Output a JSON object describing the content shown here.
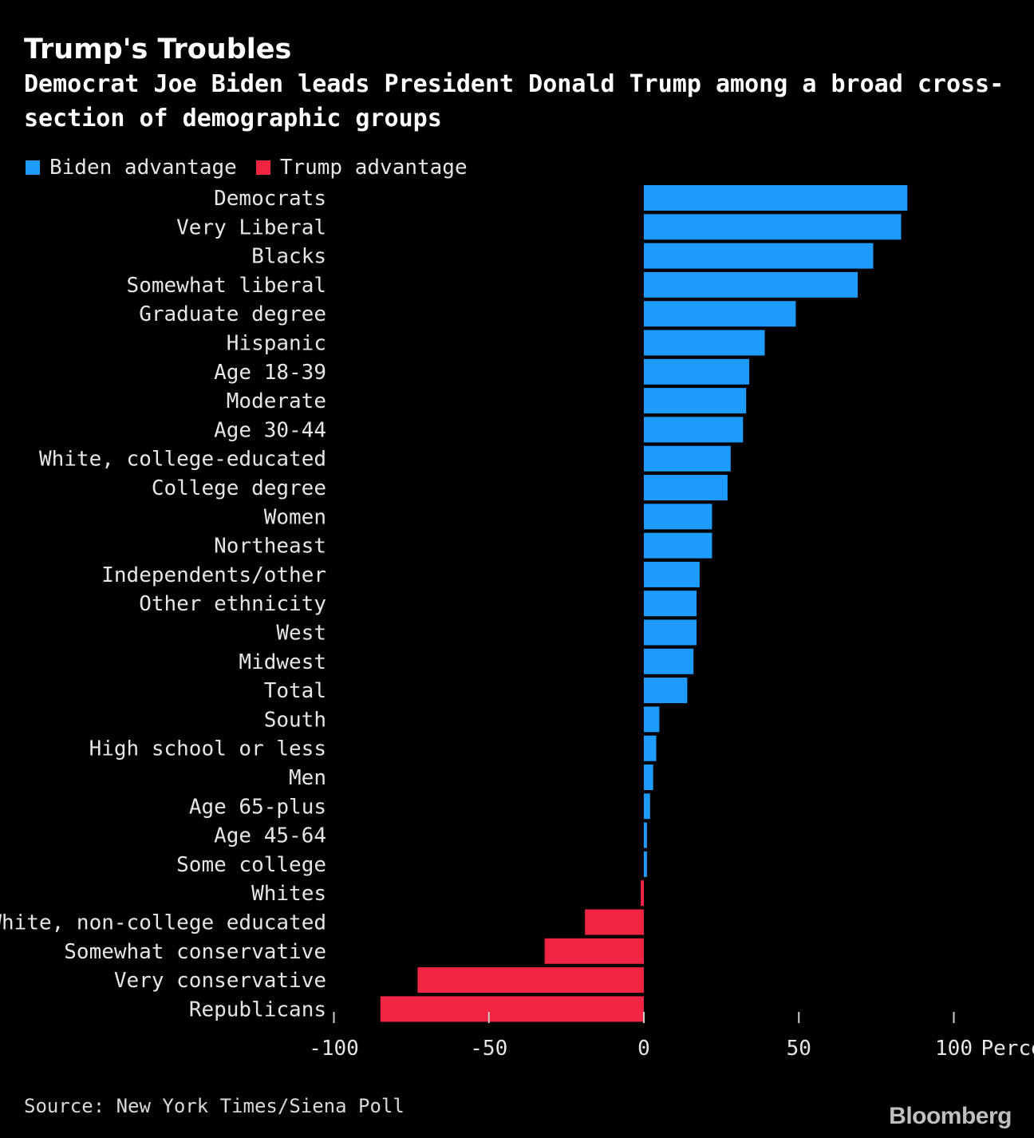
{
  "header": {
    "title": "Trump's Troubles",
    "subtitle": "Democrat Joe Biden leads President Donald Trump among a broad cross-section of demographic groups"
  },
  "legend": {
    "positive_label": "Biden advantage",
    "negative_label": "Trump advantage"
  },
  "colors": {
    "positive": "#1e9bff",
    "negative": "#ef2543",
    "background": "#000000",
    "text": "#e6e6e6"
  },
  "footer": {
    "source": "Source: New York Times/Siena Poll",
    "brand": "Bloomberg"
  },
  "chart_data": {
    "type": "bar",
    "orientation": "horizontal",
    "categories": [
      "Democrats",
      "Very Liberal",
      "Blacks",
      "Somewhat liberal",
      "Graduate degree",
      "Hispanic",
      "Age 18-39",
      "Moderate",
      "Age 30-44",
      "White, college-educated",
      "College degree",
      "Women",
      "Northeast",
      "Independents/other",
      "Other ethnicity",
      "West",
      "Midwest",
      "Total",
      "South",
      "High school or less",
      "Men",
      "Age 65-plus",
      "Age 45-64",
      "Some college",
      "Whites",
      "White, non-college educated",
      "Somewhat conservative",
      "Very conservative",
      "Republicans"
    ],
    "values": [
      85,
      83,
      74,
      69,
      49,
      39,
      34,
      33,
      32,
      28,
      27,
      22,
      22,
      18,
      17,
      17,
      16,
      14,
      5,
      4,
      3,
      2,
      1,
      1,
      -1,
      -19,
      -32,
      -73,
      -85
    ],
    "xlim": [
      -100,
      100
    ],
    "xticks": [
      -100,
      -50,
      0,
      50,
      100
    ],
    "tick_labels": [
      "-100",
      "-50",
      "0",
      "50",
      "100"
    ],
    "unit_label": "Percent",
    "grid": false,
    "legend_position": "top-left"
  }
}
